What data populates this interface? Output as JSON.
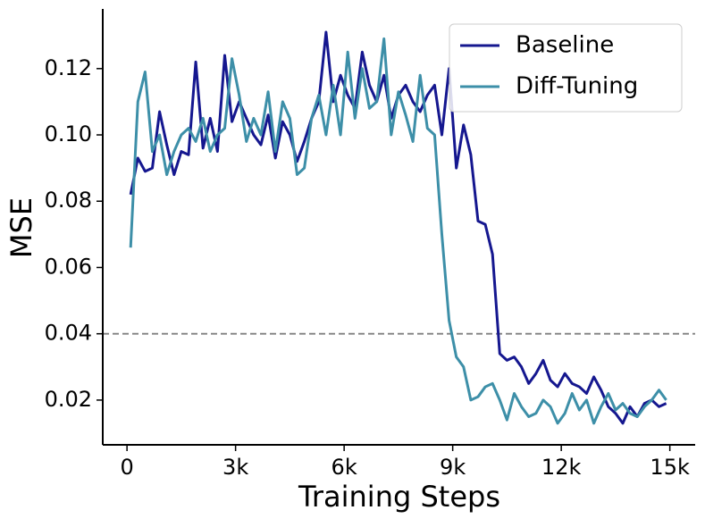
{
  "chart_data": {
    "type": "line",
    "x_label": "Training Steps",
    "y_label": "MSE",
    "x": [
      100,
      300,
      500,
      700,
      900,
      1100,
      1300,
      1500,
      1700,
      1900,
      2100,
      2300,
      2500,
      2700,
      2900,
      3100,
      3300,
      3500,
      3700,
      3900,
      4100,
      4300,
      4500,
      4700,
      4900,
      5100,
      5300,
      5500,
      5700,
      5900,
      6100,
      6300,
      6500,
      6700,
      6900,
      7100,
      7300,
      7500,
      7700,
      7900,
      8100,
      8300,
      8500,
      8700,
      8900,
      9100,
      9300,
      9500,
      9700,
      9900,
      10100,
      10300,
      10500,
      10700,
      10900,
      11100,
      11300,
      11500,
      11700,
      11900,
      12100,
      12300,
      12500,
      12700,
      12900,
      13100,
      13300,
      13500,
      13700,
      13900,
      14100,
      14300,
      14500,
      14700,
      14900
    ],
    "series": [
      {
        "name": "Baseline",
        "color": "#15178f",
        "values": [
          0.082,
          0.093,
          0.089,
          0.09,
          0.107,
          0.097,
          0.088,
          0.095,
          0.094,
          0.122,
          0.096,
          0.105,
          0.095,
          0.124,
          0.104,
          0.11,
          0.105,
          0.1,
          0.097,
          0.106,
          0.093,
          0.104,
          0.1,
          0.092,
          0.098,
          0.105,
          0.11,
          0.131,
          0.11,
          0.118,
          0.112,
          0.108,
          0.125,
          0.115,
          0.11,
          0.118,
          0.105,
          0.112,
          0.115,
          0.11,
          0.107,
          0.112,
          0.115,
          0.1,
          0.12,
          0.09,
          0.103,
          0.094,
          0.074,
          0.073,
          0.064,
          0.034,
          0.032,
          0.033,
          0.03,
          0.025,
          0.028,
          0.032,
          0.026,
          0.024,
          0.028,
          0.025,
          0.024,
          0.022,
          0.027,
          0.023,
          0.018,
          0.016,
          0.013,
          0.018,
          0.015,
          0.019,
          0.02,
          0.018,
          0.019
        ]
      },
      {
        "name": "Diff-Tuning",
        "color": "#3d8fa8",
        "values": [
          0.066,
          0.11,
          0.119,
          0.095,
          0.1,
          0.088,
          0.095,
          0.1,
          0.102,
          0.098,
          0.105,
          0.095,
          0.1,
          0.102,
          0.123,
          0.112,
          0.098,
          0.105,
          0.1,
          0.113,
          0.095,
          0.11,
          0.105,
          0.088,
          0.09,
          0.105,
          0.112,
          0.1,
          0.115,
          0.1,
          0.125,
          0.105,
          0.12,
          0.108,
          0.11,
          0.129,
          0.1,
          0.113,
          0.106,
          0.098,
          0.118,
          0.102,
          0.1,
          0.07,
          0.044,
          0.033,
          0.03,
          0.02,
          0.021,
          0.024,
          0.025,
          0.02,
          0.014,
          0.022,
          0.018,
          0.015,
          0.016,
          0.02,
          0.018,
          0.013,
          0.016,
          0.022,
          0.017,
          0.02,
          0.013,
          0.018,
          0.022,
          0.017,
          0.019,
          0.016,
          0.015,
          0.018,
          0.02,
          0.023,
          0.02
        ]
      }
    ],
    "reference_line": 0.04,
    "xlim": [
      -670,
      15700
    ],
    "ylim": [
      0.0065,
      0.138
    ],
    "xticks": [
      0,
      {
        "value": 3000,
        "label": "3k"
      },
      {
        "value": 6000,
        "label": "6k"
      },
      {
        "value": 9000,
        "label": "9k"
      },
      {
        "value": 12000,
        "label": "12k"
      },
      {
        "value": 15000,
        "label": "15k"
      }
    ],
    "yticks": [
      0.02,
      0.04,
      0.06,
      0.08,
      {
        "value": 0.1,
        "label": "0.10"
      },
      0.12
    ],
    "grid": false,
    "legend": "upper right"
  }
}
